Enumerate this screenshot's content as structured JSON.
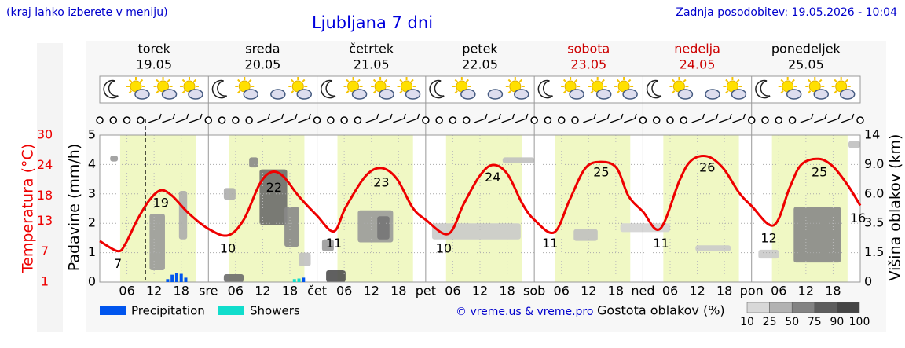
{
  "header": {
    "note": "(kraj lahko izberete v meniju)",
    "updated": "Zadnja posodobitev: 19.05.2026 - 10:04"
  },
  "chart_data": {
    "type": "meteogram",
    "title": "Ljubljana 7 dni",
    "xlim": [
      0,
      168
    ],
    "now": 10.07,
    "daylight": [
      4.5,
      21.2
    ],
    "days": [
      {
        "name": "torek",
        "date": "19.05",
        "color": "#000000"
      },
      {
        "name": "sreda",
        "date": "20.05",
        "color": "#000000"
      },
      {
        "name": "četrtek",
        "date": "21.05",
        "color": "#000000"
      },
      {
        "name": "petek",
        "date": "22.05",
        "color": "#000000"
      },
      {
        "name": "sobota",
        "date": "23.05",
        "color": "#cc0000"
      },
      {
        "name": "nedelja",
        "date": "24.05",
        "color": "#cc0000"
      },
      {
        "name": "ponedeljek",
        "date": "25.05",
        "color": "#000000"
      }
    ],
    "xticks": [
      {
        "value": 6,
        "label": "06"
      },
      12,
      18,
      {
        "value": 24,
        "label": "sre"
      },
      {
        "value": 30,
        "label": "06"
      },
      {
        "value": 36,
        "label": "12"
      },
      {
        "value": 42,
        "label": "18"
      },
      {
        "value": 48,
        "label": "čet"
      },
      {
        "value": 54,
        "label": "06"
      },
      {
        "value": 60,
        "label": "12"
      },
      {
        "value": 66,
        "label": "18"
      },
      {
        "value": 72,
        "label": "pet"
      },
      {
        "value": 78,
        "label": "06"
      },
      {
        "value": 84,
        "label": "12"
      },
      {
        "value": 90,
        "label": "18"
      },
      {
        "value": 96,
        "label": "sob"
      },
      {
        "value": 102,
        "label": "06"
      },
      {
        "value": 108,
        "label": "12"
      },
      {
        "value": 114,
        "label": "18"
      },
      {
        "value": 120,
        "label": "ned"
      },
      {
        "value": 126,
        "label": "06"
      },
      {
        "value": 132,
        "label": "12"
      },
      {
        "value": 138,
        "label": "18"
      },
      {
        "value": 144,
        "label": "pon"
      },
      {
        "value": 150,
        "label": "06"
      },
      {
        "value": 156,
        "label": "12"
      },
      {
        "value": 162,
        "label": "18"
      }
    ],
    "temperature": {
      "label": "Temperatura (°C)",
      "color": "#ee0000",
      "ylim": [
        1,
        30
      ],
      "yticks": [
        1,
        7,
        13,
        18,
        24,
        30
      ],
      "x": [
        0,
        4,
        5.7,
        8.3,
        11,
        13.5,
        16,
        19.6,
        24,
        28.3,
        31.8,
        35.3,
        37.9,
        40.5,
        43.9,
        48,
        51.7,
        54.3,
        58.7,
        62.2,
        65.6,
        69.1,
        72,
        77,
        80.4,
        83.9,
        86.8,
        90,
        93.4,
        96,
        100.4,
        103.8,
        107.3,
        110.8,
        114.2,
        116.8,
        120,
        123.8,
        128.1,
        130.7,
        134.2,
        137.7,
        141.1,
        143.9,
        148.9,
        152.4,
        155,
        158.8,
        162,
        165.4,
        168
      ],
      "values": [
        9.1,
        7.1,
        8.6,
        13.3,
        17.2,
        19.1,
        18,
        14.6,
        11.5,
        10.2,
        13.3,
        20.3,
        22.7,
        21.9,
        18,
        14.1,
        11,
        15.7,
        21.9,
        23.5,
        21.4,
        15.7,
        13.3,
        10.5,
        16.4,
        21.9,
        24.1,
        22.4,
        16.4,
        13.3,
        10.8,
        17.2,
        23.5,
        24.7,
        23.5,
        18,
        14.9,
        11.5,
        21.1,
        25,
        25.8,
        23.5,
        18.8,
        16.1,
        12.2,
        19.6,
        24.2,
        25.3,
        23.8,
        19.9,
        16.1
      ],
      "labels": [
        {
          "x": 4,
          "value": 7
        },
        {
          "x": 13.5,
          "value": 19
        },
        {
          "x": 28.3,
          "value": 10
        },
        {
          "x": 38.5,
          "value": 22
        },
        {
          "x": 51.7,
          "value": 11
        },
        {
          "x": 62.2,
          "value": 23
        },
        {
          "x": 76,
          "value": 10
        },
        {
          "x": 86.8,
          "value": 24
        },
        {
          "x": 99.5,
          "value": 11
        },
        {
          "x": 110.8,
          "value": 25
        },
        {
          "x": 124,
          "value": 11
        },
        {
          "x": 134.2,
          "value": 26
        },
        {
          "x": 147.8,
          "value": 12
        },
        {
          "x": 159,
          "value": 25
        },
        {
          "x": 167.5,
          "value": 16
        }
      ]
    },
    "precipitation": {
      "label": "Padavine (mm/h)",
      "ylim": [
        0,
        5
      ],
      "yticks": [
        0,
        1,
        2,
        3,
        4,
        5
      ],
      "series": [
        {
          "name": "Precipitation",
          "color": "#0055ee",
          "x": [
            15,
            16,
            17,
            18,
            19,
            45
          ],
          "values": [
            0.1,
            0.25,
            0.32,
            0.28,
            0.15,
            0.15
          ]
        },
        {
          "name": "Showers",
          "color": "#11ddcc",
          "x": [
            43,
            44
          ],
          "values": [
            0.1,
            0.12
          ]
        }
      ]
    },
    "cloud_height": {
      "label": "Višina oblakov (km)",
      "yticks": [
        0,
        1.5,
        3.5,
        {
          "value": 6,
          "label": "6.0"
        },
        {
          "value": 9,
          "label": "9.0"
        },
        14
      ]
    },
    "clouds": [
      {
        "x": [
          2.3,
          4
        ],
        "km": [
          9.5,
          10.5
        ],
        "density": 50
      },
      {
        "x": [
          11,
          14.4
        ],
        "km": [
          0.6,
          4.3
        ],
        "density": 50
      },
      {
        "x": [
          17.5,
          19.3
        ],
        "km": [
          2.4,
          6.3
        ],
        "density": 40
      },
      {
        "x": [
          27.4,
          30
        ],
        "km": [
          5.5,
          6.6
        ],
        "density": 40
      },
      {
        "x": [
          33,
          35
        ],
        "km": [
          8.7,
          10.2
        ],
        "density": 60
      },
      {
        "x": [
          35.3,
          41.4
        ],
        "km": [
          3.4,
          8.5
        ],
        "density": 75
      },
      {
        "x": [
          40.8,
          44
        ],
        "km": [
          1.9,
          4.9
        ],
        "density": 60
      },
      {
        "x": [
          44,
          46.6
        ],
        "km": [
          0.8,
          1.5
        ],
        "density": 30
      },
      {
        "x": [
          49.1,
          51.7
        ],
        "km": [
          1.6,
          2.4
        ],
        "density": 50
      },
      {
        "x": [
          57,
          64.8
        ],
        "km": [
          2.2,
          4.6
        ],
        "density": 50
      },
      {
        "x": [
          61.3,
          64
        ],
        "km": [
          2.4,
          4.1
        ],
        "density": 70
      },
      {
        "x": [
          73.4,
          93
        ],
        "km": [
          2.4,
          3.5
        ],
        "density": 25
      },
      {
        "x": [
          89,
          96
        ],
        "km": [
          9.2,
          10.2
        ],
        "density": 30
      },
      {
        "x": [
          104.7,
          110
        ],
        "km": [
          2.3,
          3.1
        ],
        "density": 30
      },
      {
        "x": [
          115,
          126
        ],
        "km": [
          2.9,
          3.5
        ],
        "density": 20
      },
      {
        "x": [
          131.6,
          139.4
        ],
        "km": [
          1.6,
          2
        ],
        "density": 25
      },
      {
        "x": [
          145.5,
          150
        ],
        "km": [
          1.2,
          1.7
        ],
        "density": 25
      },
      {
        "x": [
          153.3,
          163.7
        ],
        "km": [
          1,
          4.9
        ],
        "density": 60
      },
      {
        "x": [
          165.4,
          168
        ],
        "km": [
          11.8,
          13
        ],
        "density": 30
      },
      {
        "x": [
          27.4,
          31.8
        ],
        "km": [
          0,
          0.4
        ],
        "density": 75
      },
      {
        "x": [
          50,
          54.3
        ],
        "km": [
          0,
          0.6
        ],
        "density": 90
      }
    ],
    "credit": "© vreme.us & vreme.pro",
    "density_label": "Gostota oblakov (%)",
    "density_scale": [
      10,
      25,
      50,
      75,
      90,
      100
    ]
  }
}
